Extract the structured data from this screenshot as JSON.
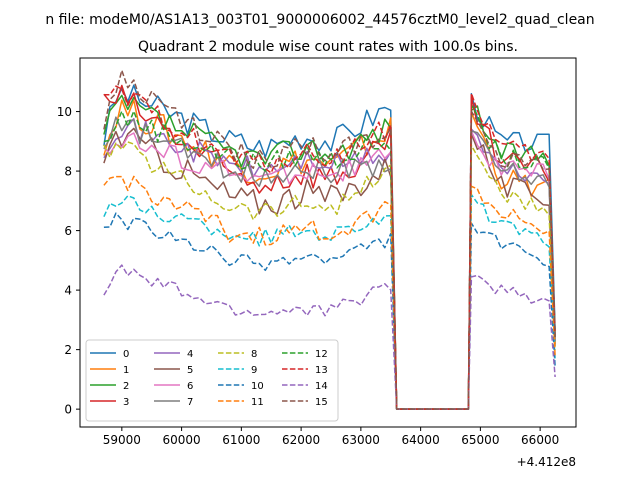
{
  "suptitle": "n file: modeM0/AS1A13_003T01_9000006002_44576cztM0_level2_quad_clean",
  "chart_data": {
    "type": "line",
    "title": "Quadrant 2 module wise count rates with 100.0s bins.",
    "xlabel": "",
    "ylabel": "",
    "x_offset_label": "+4.412e8",
    "xlim": [
      58300,
      66600
    ],
    "ylim": [
      -0.6,
      11.8
    ],
    "xticks": [
      59000,
      60000,
      61000,
      62000,
      63000,
      64000,
      65000,
      66000
    ],
    "yticks": [
      0,
      2,
      4,
      6,
      8,
      10
    ],
    "grid": false,
    "legend_placement": "lower-left",
    "legend_columns": 4,
    "gaps": [
      [
        63600,
        64800
      ]
    ],
    "segments": [
      [
        58700,
        63500
      ],
      [
        64850,
        66200
      ]
    ],
    "series": [
      {
        "name": "0",
        "color": "#1f77b4",
        "dash": "solid",
        "seg1": {
          "start": 9.1,
          "peak": 10.7,
          "mid": 9.0,
          "end": 10.2
        },
        "seg2": {
          "start": 10.4,
          "mid": 9.0,
          "end": 8.9
        },
        "noise": 0.45
      },
      {
        "name": "1",
        "color": "#ff7f0e",
        "dash": "solid",
        "seg1": {
          "start": 8.6,
          "peak": 10.2,
          "mid": 8.2,
          "end": 9.4
        },
        "seg2": {
          "start": 10.0,
          "mid": 7.8,
          "end": 7.3
        },
        "noise": 0.5
      },
      {
        "name": "2",
        "color": "#2ca02c",
        "dash": "solid",
        "seg1": {
          "start": 9.1,
          "peak": 10.3,
          "mid": 8.6,
          "end": 9.5
        },
        "seg2": {
          "start": 10.3,
          "mid": 8.6,
          "end": 8.5
        },
        "noise": 0.45
      },
      {
        "name": "3",
        "color": "#d62728",
        "dash": "solid",
        "seg1": {
          "start": 10.2,
          "peak": 10.5,
          "mid": 7.8,
          "end": 8.8
        },
        "seg2": {
          "start": 10.2,
          "mid": 8.3,
          "end": 8.0
        },
        "noise": 0.55
      },
      {
        "name": "4",
        "color": "#9467bd",
        "dash": "solid",
        "seg1": {
          "start": 8.8,
          "peak": 9.6,
          "mid": 8.2,
          "end": 8.6
        },
        "seg2": {
          "start": 9.4,
          "mid": 8.0,
          "end": 7.8
        },
        "noise": 0.4
      },
      {
        "name": "5",
        "color": "#8c564b",
        "dash": "solid",
        "seg1": {
          "start": 8.5,
          "peak": 9.3,
          "mid": 7.1,
          "end": 8.2
        },
        "seg2": {
          "start": 9.5,
          "mid": 7.5,
          "end": 7.1
        },
        "noise": 0.5
      },
      {
        "name": "6",
        "color": "#e377c2",
        "dash": "solid",
        "seg1": {
          "start": 8.8,
          "peak": 9.1,
          "mid": 7.9,
          "end": 8.5
        },
        "seg2": {
          "start": 9.1,
          "mid": 8.1,
          "end": 7.9
        },
        "noise": 0.4
      },
      {
        "name": "7",
        "color": "#7f7f7f",
        "dash": "solid",
        "seg1": {
          "start": 8.6,
          "peak": 9.6,
          "mid": 8.0,
          "end": 8.3
        },
        "seg2": {
          "start": 9.3,
          "mid": 8.1,
          "end": 7.6
        },
        "noise": 0.4
      },
      {
        "name": "8",
        "color": "#bcbd22",
        "dash": "dashed",
        "seg1": {
          "start": 8.6,
          "peak": 8.9,
          "mid": 6.8,
          "end": 8.0
        },
        "seg2": {
          "start": 9.0,
          "mid": 7.2,
          "end": 6.6
        },
        "noise": 0.35
      },
      {
        "name": "9",
        "color": "#17becf",
        "dash": "dashed",
        "seg1": {
          "start": 6.7,
          "peak": 7.0,
          "mid": 5.9,
          "end": 6.6
        },
        "seg2": {
          "start": 7.0,
          "mid": 6.2,
          "end": 5.5
        },
        "noise": 0.3
      },
      {
        "name": "10",
        "color": "#1f77b4",
        "dash": "dashed",
        "seg1": {
          "start": 6.2,
          "peak": 6.4,
          "mid": 5.0,
          "end": 5.7
        },
        "seg2": {
          "start": 6.2,
          "mid": 5.6,
          "end": 4.8
        },
        "noise": 0.25
      },
      {
        "name": "11",
        "color": "#ff7f0e",
        "dash": "dashed",
        "seg1": {
          "start": 7.5,
          "peak": 7.8,
          "mid": 5.9,
          "end": 6.9
        },
        "seg2": {
          "start": 7.6,
          "mid": 6.6,
          "end": 6.0
        },
        "noise": 0.35
      },
      {
        "name": "12",
        "color": "#2ca02c",
        "dash": "dashed",
        "seg1": {
          "start": 8.8,
          "peak": 9.9,
          "mid": 8.4,
          "end": 9.1
        },
        "seg2": {
          "start": 9.9,
          "mid": 8.5,
          "end": 8.1
        },
        "noise": 0.4
      },
      {
        "name": "13",
        "color": "#d62728",
        "dash": "dashed",
        "seg1": {
          "start": 10.2,
          "peak": 10.6,
          "mid": 8.4,
          "end": 9.5
        },
        "seg2": {
          "start": 10.5,
          "mid": 8.8,
          "end": 8.4
        },
        "noise": 0.4
      },
      {
        "name": "14",
        "color": "#9467bd",
        "dash": "dashed",
        "seg1": {
          "start": 4.0,
          "peak": 4.7,
          "mid": 3.3,
          "end": 4.2
        },
        "seg2": {
          "start": 4.5,
          "mid": 4.0,
          "end": 3.6
        },
        "noise": 0.25
      },
      {
        "name": "15",
        "color": "#8c564b",
        "dash": "dashed",
        "seg1": {
          "start": 9.5,
          "peak": 11.1,
          "mid": 8.6,
          "end": 9.3
        },
        "seg2": {
          "start": 10.3,
          "mid": 8.4,
          "end": 8.0
        },
        "noise": 0.4
      }
    ]
  }
}
